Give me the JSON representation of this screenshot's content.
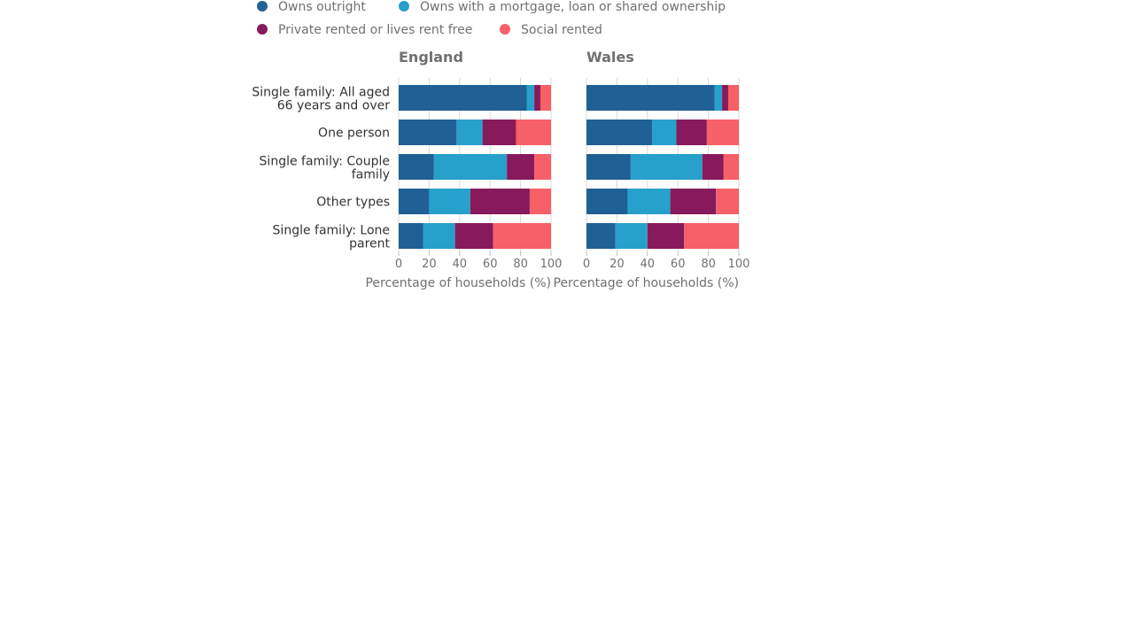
{
  "legend": [
    {
      "label": "Owns outright",
      "color": "#206095"
    },
    {
      "label": "Owns with a mortgage, loan or shared ownership",
      "color": "#27a0cc"
    },
    {
      "label": "Private rented or lives rent free",
      "color": "#871a5b"
    },
    {
      "label": "Social rented",
      "color": "#f66068"
    }
  ],
  "chart_data": [
    {
      "type": "bar",
      "orientation": "horizontal",
      "stacked": true,
      "title": "England",
      "xlabel": "Percentage of households (%)",
      "xlim": [
        0,
        100
      ],
      "xticks": [
        "0",
        "20",
        "40",
        "60",
        "80",
        "100"
      ],
      "grid": true,
      "legend_position": "top",
      "categories": [
        [
          "Single family: All aged",
          "66 years and over"
        ],
        [
          "One person"
        ],
        [
          "Single family: Couple",
          "family"
        ],
        [
          "Other types"
        ],
        [
          "Single family: Lone",
          "parent"
        ]
      ],
      "series": [
        {
          "name": "Owns outright",
          "values": [
            84,
            38,
            23,
            20,
            16
          ]
        },
        {
          "name": "Owns with a mortgage, loan or shared ownership",
          "values": [
            5,
            17,
            48,
            27,
            21
          ]
        },
        {
          "name": "Private rented or lives rent free",
          "values": [
            4,
            22,
            18,
            39,
            25
          ]
        },
        {
          "name": "Social rented",
          "values": [
            7,
            23,
            11,
            14,
            38
          ]
        }
      ]
    },
    {
      "type": "bar",
      "orientation": "horizontal",
      "stacked": true,
      "title": "Wales",
      "xlabel": "Percentage of households (%)",
      "xlim": [
        0,
        100
      ],
      "xticks": [
        "0",
        "20",
        "40",
        "60",
        "80",
        "100"
      ],
      "grid": true,
      "legend_position": "top",
      "categories": [
        [
          "Single family: All aged",
          "66 years and over"
        ],
        [
          "One person"
        ],
        [
          "Single family: Couple",
          "family"
        ],
        [
          "Other types"
        ],
        [
          "Single family: Lone",
          "parent"
        ]
      ],
      "series": [
        {
          "name": "Owns outright",
          "values": [
            84,
            43,
            29,
            27,
            19
          ]
        },
        {
          "name": "Owns with a mortgage, loan or shared ownership",
          "values": [
            5,
            16,
            47,
            28,
            21
          ]
        },
        {
          "name": "Private rented or lives rent free",
          "values": [
            4,
            20,
            14,
            30,
            24
          ]
        },
        {
          "name": "Social rented",
          "values": [
            7,
            21,
            10,
            15,
            36
          ]
        }
      ]
    }
  ]
}
